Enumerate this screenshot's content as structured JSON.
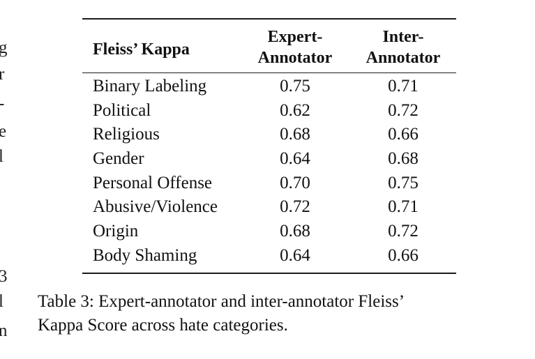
{
  "margin_fragments": [
    "g",
    "r",
    "-",
    "e",
    "l",
    "3",
    "l",
    "n"
  ],
  "table": {
    "header": {
      "col1": "Fleiss’ Kappa",
      "col2_line1": "Expert-",
      "col2_line2": "Annotator",
      "col3_line1": "Inter-",
      "col3_line2": "Annotator"
    },
    "rows": [
      {
        "category": "Binary Labeling",
        "expert": "0.75",
        "inter": "0.71"
      },
      {
        "category": "Political",
        "expert": "0.62",
        "inter": "0.72"
      },
      {
        "category": "Religious",
        "expert": "0.68",
        "inter": "0.66"
      },
      {
        "category": "Gender",
        "expert": "0.64",
        "inter": "0.68"
      },
      {
        "category": "Personal Offense",
        "expert": "0.70",
        "inter": "0.75"
      },
      {
        "category": "Abusive/Violence",
        "expert": "0.72",
        "inter": "0.71"
      },
      {
        "category": "Origin",
        "expert": "0.68",
        "inter": "0.72"
      },
      {
        "category": "Body Shaming",
        "expert": "0.64",
        "inter": "0.66"
      }
    ]
  },
  "caption": {
    "line1": "Table 3:  Expert-annotator and inter-annotator Fleiss’",
    "line2": "Kappa Score across hate categories."
  }
}
